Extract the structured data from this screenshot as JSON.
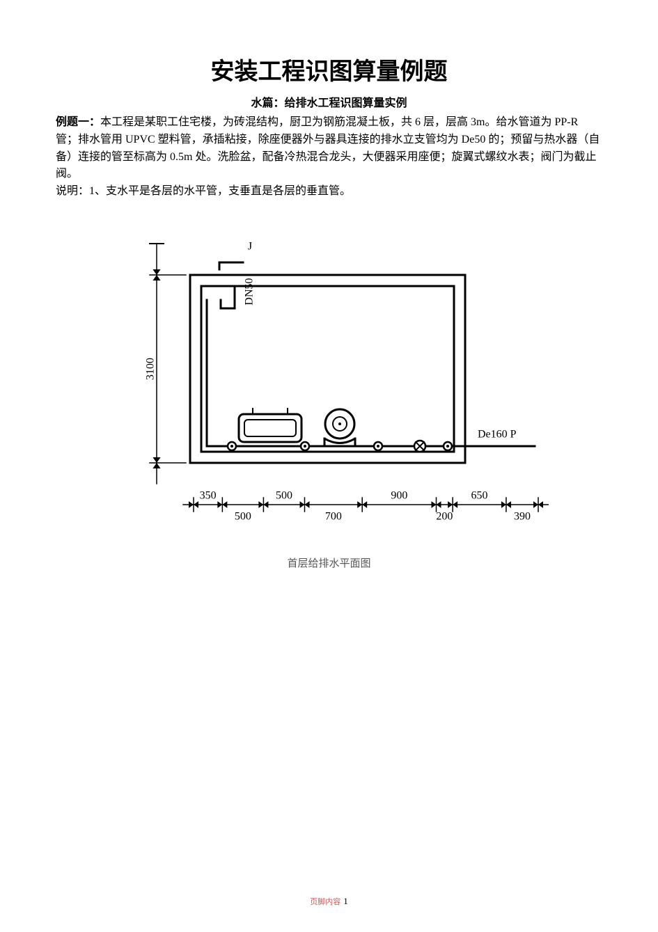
{
  "title": "安装工程识图算量例题",
  "subtitle": "水篇：给排水工程识图算量实例",
  "example_label": "例题一：",
  "body_lines": [
    "本工程是某职工住宅楼，为砖混结构，厨卫为钢筋混凝土板，共 6 层，层高 3m。给水管道为 PP-R 管；排水管用 UPVC 塑料管，承插粘接，除座便器外与器具连接的排水立支管均为 De50 的；预留与热水器（自备）连接的管至标高为 0.5m 处。洗脸盆，配备冷热混合龙头，大便器采用座便；旋翼式螺纹水表；阀门为截止阀。",
    "说明：1、支水平是各层的水平管，支垂直是各层的垂直管。"
  ],
  "diagram": {
    "caption": "首层给排水平面图",
    "stroke": "#000000",
    "stroke_thick": 3.5,
    "stroke_thin": 2,
    "font": "bold 20px SimHei, sans-serif",
    "font_dims": "bold 19px SimHei, sans-serif",
    "labels": {
      "top_left": "J",
      "top_left_sub": "DN50",
      "left_dim": "3100",
      "right": "De160 P"
    },
    "bottom_dims": [
      "350",
      "500",
      "500",
      "700",
      "900",
      "200",
      "650",
      "390"
    ]
  },
  "footer": {
    "label": "页脚内容",
    "page": "1"
  }
}
